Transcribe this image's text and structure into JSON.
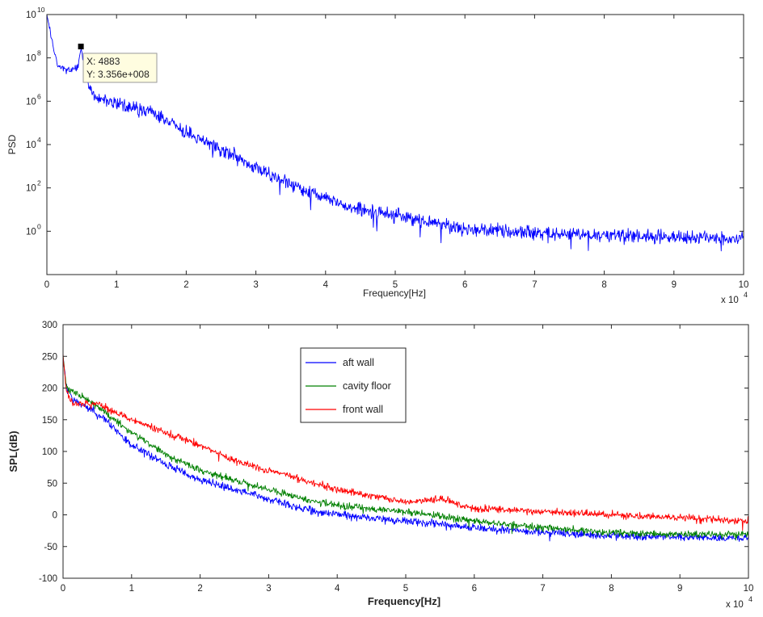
{
  "chart_data": [
    {
      "type": "line",
      "title": "",
      "xlabel": "Frequency[Hz]",
      "ylabel": "PSD",
      "x_multiplier_label": {
        "base": "x 10",
        "exp": "4"
      },
      "xlim": [
        0,
        10
      ],
      "ylim_log10": [
        -2,
        10
      ],
      "yscale": "log",
      "x_ticks": [
        "0",
        "1",
        "2",
        "3",
        "4",
        "5",
        "6",
        "7",
        "8",
        "9",
        "10"
      ],
      "y_ticks": [
        {
          "base": "10",
          "exp": "0"
        },
        {
          "base": "10",
          "exp": "2"
        },
        {
          "base": "10",
          "exp": "4"
        },
        {
          "base": "10",
          "exp": "6"
        },
        {
          "base": "10",
          "exp": "8"
        },
        {
          "base": "10",
          "exp": "10"
        }
      ],
      "series": [
        {
          "color": "#0000ff",
          "noise_amplitude_decades": 0.45,
          "x": [
            0,
            0.05,
            0.1,
            0.15,
            0.3,
            0.45,
            0.49,
            0.53,
            0.6,
            0.7,
            1.0,
            1.3,
            1.5,
            1.8,
            2.0,
            2.5,
            3.0,
            3.5,
            4.0,
            4.5,
            5.0,
            5.5,
            6.0,
            7.0,
            8.0,
            9.0,
            10.0
          ],
          "log10_psd": [
            10,
            9.2,
            8.3,
            7.7,
            7.4,
            7.6,
            8.5,
            7.6,
            6.7,
            6.2,
            5.9,
            5.6,
            5.55,
            5.0,
            4.5,
            3.8,
            2.9,
            2.2,
            1.5,
            1.0,
            0.7,
            0.4,
            0.1,
            -0.1,
            -0.2,
            -0.3,
            -0.35
          ]
        }
      ],
      "datatip": {
        "x_label": "X: 4883",
        "y_label": "Y: 3.356e+008",
        "x": 0.4883,
        "y": 335600000
      }
    },
    {
      "type": "line",
      "title": "",
      "xlabel": "Frequency[Hz]",
      "ylabel": "SPL(dB)",
      "x_multiplier_label": {
        "base": "x 10",
        "exp": "4"
      },
      "xlim": [
        0,
        10
      ],
      "ylim": [
        -100,
        300
      ],
      "x_ticks": [
        "0",
        "1",
        "2",
        "3",
        "4",
        "5",
        "6",
        "7",
        "8",
        "9",
        "10"
      ],
      "y_ticks": [
        "-100",
        "-50",
        "0",
        "50",
        "100",
        "150",
        "200",
        "250",
        "300"
      ],
      "legend_position": "upper-center",
      "series": [
        {
          "name": "aft wall",
          "color": "#0000ff",
          "noise_amplitude": 9,
          "x": [
            0,
            0.05,
            0.15,
            0.5,
            1.0,
            1.5,
            2.0,
            2.5,
            3.0,
            3.5,
            4.0,
            5.0,
            6.0,
            7.0,
            8.0,
            9.0,
            10.0
          ],
          "y": [
            250,
            200,
            180,
            160,
            110,
            80,
            55,
            40,
            25,
            10,
            0,
            -10,
            -20,
            -28,
            -33,
            -35,
            -37
          ]
        },
        {
          "name": "cavity floor",
          "color": "#008000",
          "noise_amplitude": 8,
          "x": [
            0,
            0.05,
            0.15,
            0.5,
            1.0,
            1.5,
            2.0,
            2.5,
            3.0,
            3.5,
            4.0,
            5.0,
            6.0,
            7.0,
            8.0,
            9.0,
            10.0
          ],
          "y": [
            250,
            200,
            195,
            170,
            130,
            95,
            70,
            55,
            40,
            25,
            15,
            5,
            -10,
            -20,
            -28,
            -30,
            -32
          ]
        },
        {
          "name": "front wall",
          "color": "#ff0000",
          "noise_amplitude": 8,
          "x": [
            0,
            0.05,
            0.15,
            0.5,
            1.0,
            1.5,
            2.0,
            2.5,
            3.0,
            3.5,
            4.0,
            5.0,
            5.5,
            6.0,
            7.0,
            8.0,
            9.0,
            10.0
          ],
          "y": [
            250,
            195,
            175,
            175,
            150,
            130,
            110,
            85,
            70,
            55,
            40,
            20,
            25,
            10,
            5,
            0,
            -5,
            -10
          ]
        }
      ]
    }
  ]
}
